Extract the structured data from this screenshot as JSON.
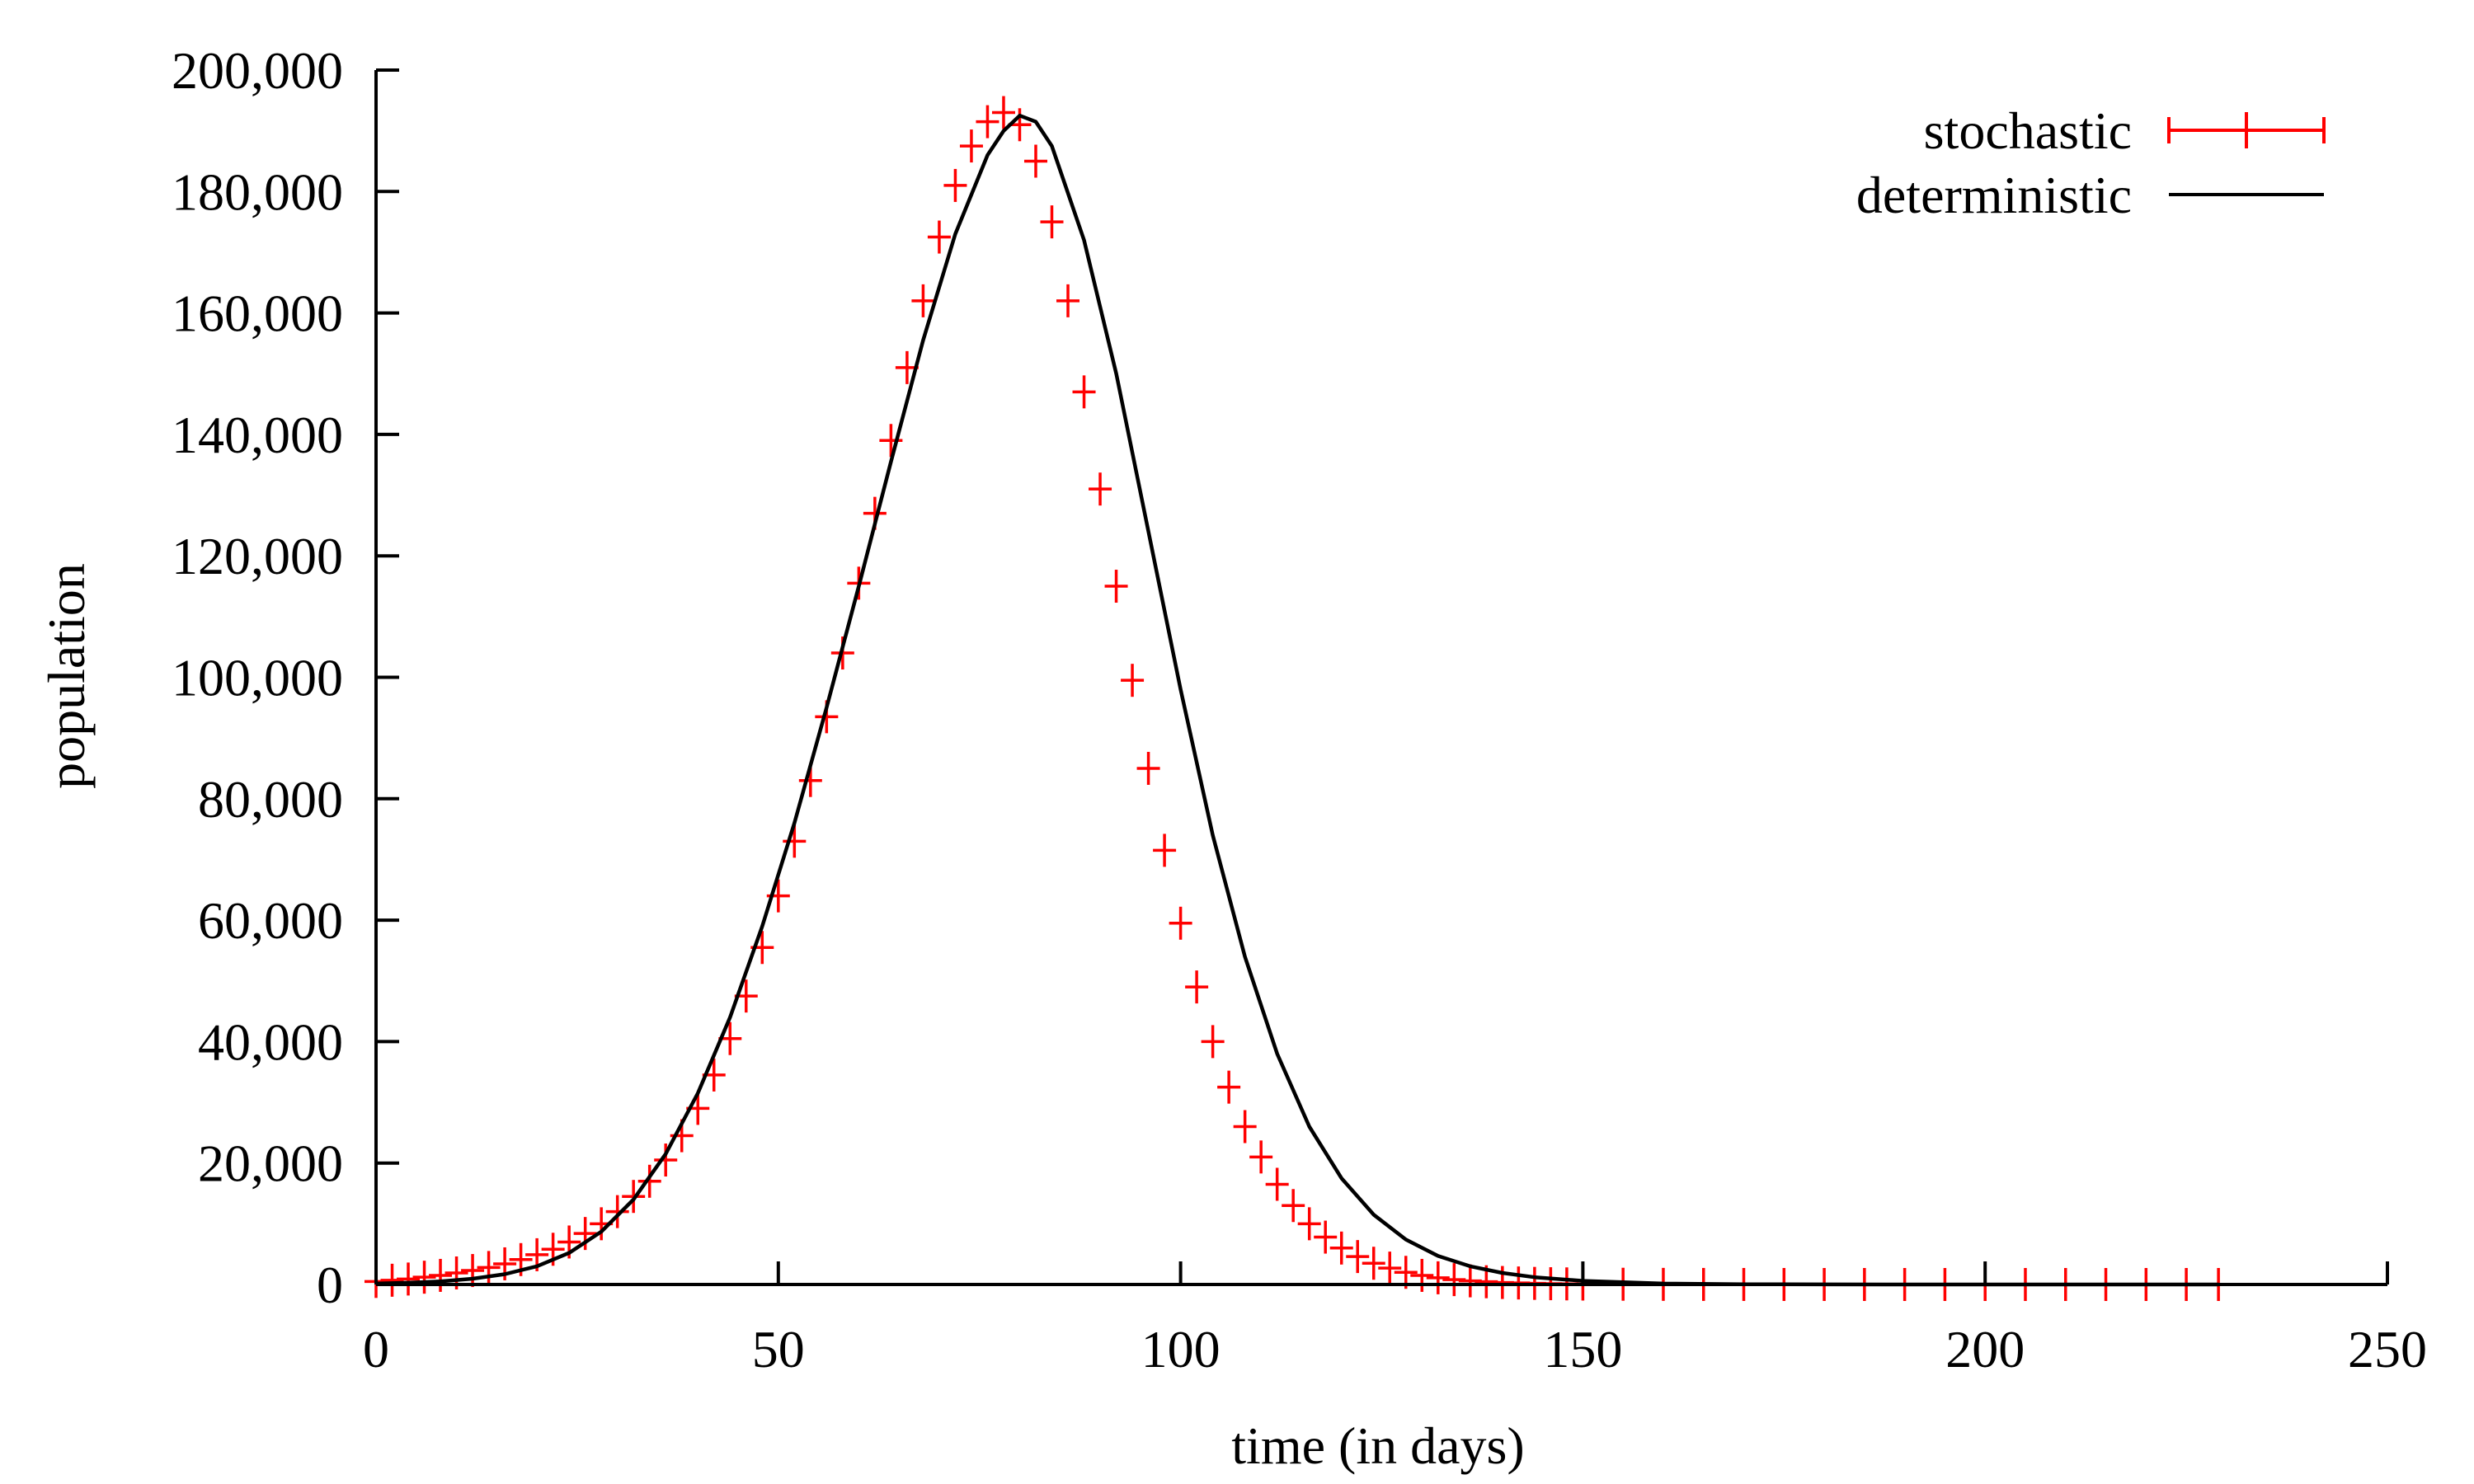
{
  "chart_data": {
    "type": "line",
    "title": "",
    "xlabel": "time (in days)",
    "ylabel": "population",
    "xlim": [
      0,
      250
    ],
    "ylim": [
      0,
      200000
    ],
    "x_ticks": [
      0,
      50,
      100,
      150,
      200,
      250
    ],
    "x_tick_labels": [
      "0",
      "50",
      "100",
      "150",
      "200",
      "250"
    ],
    "y_ticks": [
      0,
      20000,
      40000,
      60000,
      80000,
      100000,
      120000,
      140000,
      160000,
      180000,
      200000
    ],
    "y_tick_labels": [
      "0",
      "20,000",
      "40,000",
      "60,000",
      "80,000",
      "100,000",
      "120,000",
      "140,000",
      "160,000",
      "180,000",
      "200,000"
    ],
    "grid": false,
    "legend_position": "top-right",
    "series": [
      {
        "name": "stochastic",
        "style": "points-with-xerrorbars",
        "color": "#ff0000",
        "x": [
          0,
          2,
          4,
          6,
          8,
          10,
          12,
          14,
          16,
          18,
          20,
          22,
          24,
          26,
          28,
          30,
          32,
          34,
          36,
          38,
          40,
          42,
          44,
          46,
          48,
          50,
          52,
          54,
          56,
          58,
          60,
          62,
          64,
          66,
          68,
          70,
          72,
          74,
          76,
          78,
          80,
          82,
          84,
          86,
          88,
          90,
          92,
          94,
          96,
          98,
          100,
          102,
          104,
          106,
          108,
          110,
          112,
          114,
          116,
          118,
          120,
          122,
          124,
          126,
          128,
          130,
          132,
          134,
          136,
          138,
          140,
          142,
          144,
          146,
          148,
          150,
          155,
          160,
          165,
          170,
          175,
          180,
          185,
          190,
          195,
          200,
          205,
          210,
          215,
          220,
          225,
          229
        ],
        "y": [
          500,
          700,
          900,
          1200,
          1500,
          1900,
          2300,
          2800,
          3400,
          4100,
          4900,
          5800,
          7000,
          8400,
          10000,
          12000,
          14500,
          17000,
          20500,
          24500,
          29000,
          34500,
          40500,
          47500,
          55500,
          64000,
          73000,
          83000,
          93500,
          104000,
          115500,
          127000,
          139000,
          151000,
          162000,
          172500,
          181000,
          187500,
          191500,
          193000,
          191000,
          185000,
          175000,
          162000,
          147000,
          131000,
          115000,
          99500,
          85000,
          71500,
          59500,
          49000,
          40000,
          32500,
          26000,
          21000,
          16500,
          13000,
          10000,
          7800,
          6000,
          4600,
          3500,
          2700,
          2000,
          1500,
          1100,
          800,
          600,
          450,
          330,
          250,
          180,
          130,
          100,
          70,
          40,
          20,
          10,
          5,
          3,
          2,
          1,
          0,
          0,
          0,
          0,
          0,
          0,
          0,
          0,
          0
        ]
      },
      {
        "name": "deterministic",
        "style": "line",
        "color": "#000000",
        "x": [
          0,
          4,
          8,
          12,
          16,
          20,
          24,
          28,
          32,
          36,
          40,
          44,
          48,
          52,
          56,
          60,
          64,
          68,
          72,
          76,
          78,
          80,
          82,
          84,
          88,
          92,
          96,
          100,
          104,
          108,
          112,
          116,
          120,
          124,
          128,
          132,
          136,
          140,
          144,
          150,
          160,
          170,
          180,
          200,
          229
        ],
        "y": [
          150,
          280,
          520,
          950,
          1700,
          3000,
          5200,
          8700,
          14000,
          21500,
          31500,
          44000,
          59000,
          76000,
          95000,
          115000,
          135500,
          155500,
          173000,
          186000,
          190000,
          192500,
          191500,
          187500,
          172000,
          150000,
          124000,
          98000,
          74000,
          54000,
          38000,
          26000,
          17500,
          11500,
          7400,
          4700,
          3000,
          1900,
          1200,
          600,
          150,
          40,
          10,
          0,
          0
        ]
      }
    ]
  },
  "colors": {
    "axis": "#000000",
    "stochastic": "#ff0000",
    "deterministic": "#000000"
  }
}
